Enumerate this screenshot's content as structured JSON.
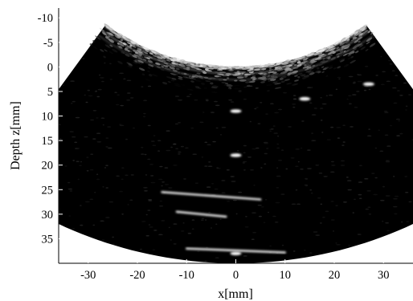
{
  "figure": {
    "xlabel": "x[mm]",
    "ylabel": "Depth z[mm]",
    "xlim": [
      -36,
      36
    ],
    "ylim": [
      -12,
      40
    ],
    "x_ticks": [
      -30,
      -20,
      -10,
      0,
      10,
      20,
      30
    ],
    "y_ticks": [
      -10,
      -5,
      0,
      5,
      10,
      15,
      20,
      25,
      30,
      35
    ],
    "x_tick_labels": [
      "-30",
      "-20",
      "-10",
      "0",
      "10",
      "20",
      "30"
    ],
    "y_tick_labels": [
      "-10",
      "-5",
      "0",
      "5",
      "10",
      "15",
      "20",
      "25",
      "30",
      "35"
    ],
    "colormap": "grayscale",
    "background_color": "#000000",
    "image_type": "curvilinear ultrasound B-mode"
  },
  "sector": {
    "apex_x_mm": 0,
    "apex_z_mm": -45,
    "inner_radius_mm": 45,
    "outer_radius_mm": 85,
    "half_angle_deg": 36
  },
  "point_targets": [
    {
      "x_mm": 0,
      "z_mm": 9
    },
    {
      "x_mm": 0,
      "z_mm": 18
    },
    {
      "x_mm": 0,
      "z_mm": 38
    },
    {
      "x_mm": 14,
      "z_mm": 6.5
    },
    {
      "x_mm": 27,
      "z_mm": 3.5
    }
  ],
  "line_reflectors": [
    {
      "x1_mm": -15,
      "z1_mm": 25.5,
      "x2_mm": 5,
      "z2_mm": 27
    },
    {
      "x1_mm": -12,
      "z1_mm": 29.5,
      "x2_mm": -2,
      "z2_mm": 30.5
    },
    {
      "x1_mm": -10,
      "z1_mm": 37,
      "x2_mm": 10,
      "z2_mm": 37.8
    }
  ]
}
